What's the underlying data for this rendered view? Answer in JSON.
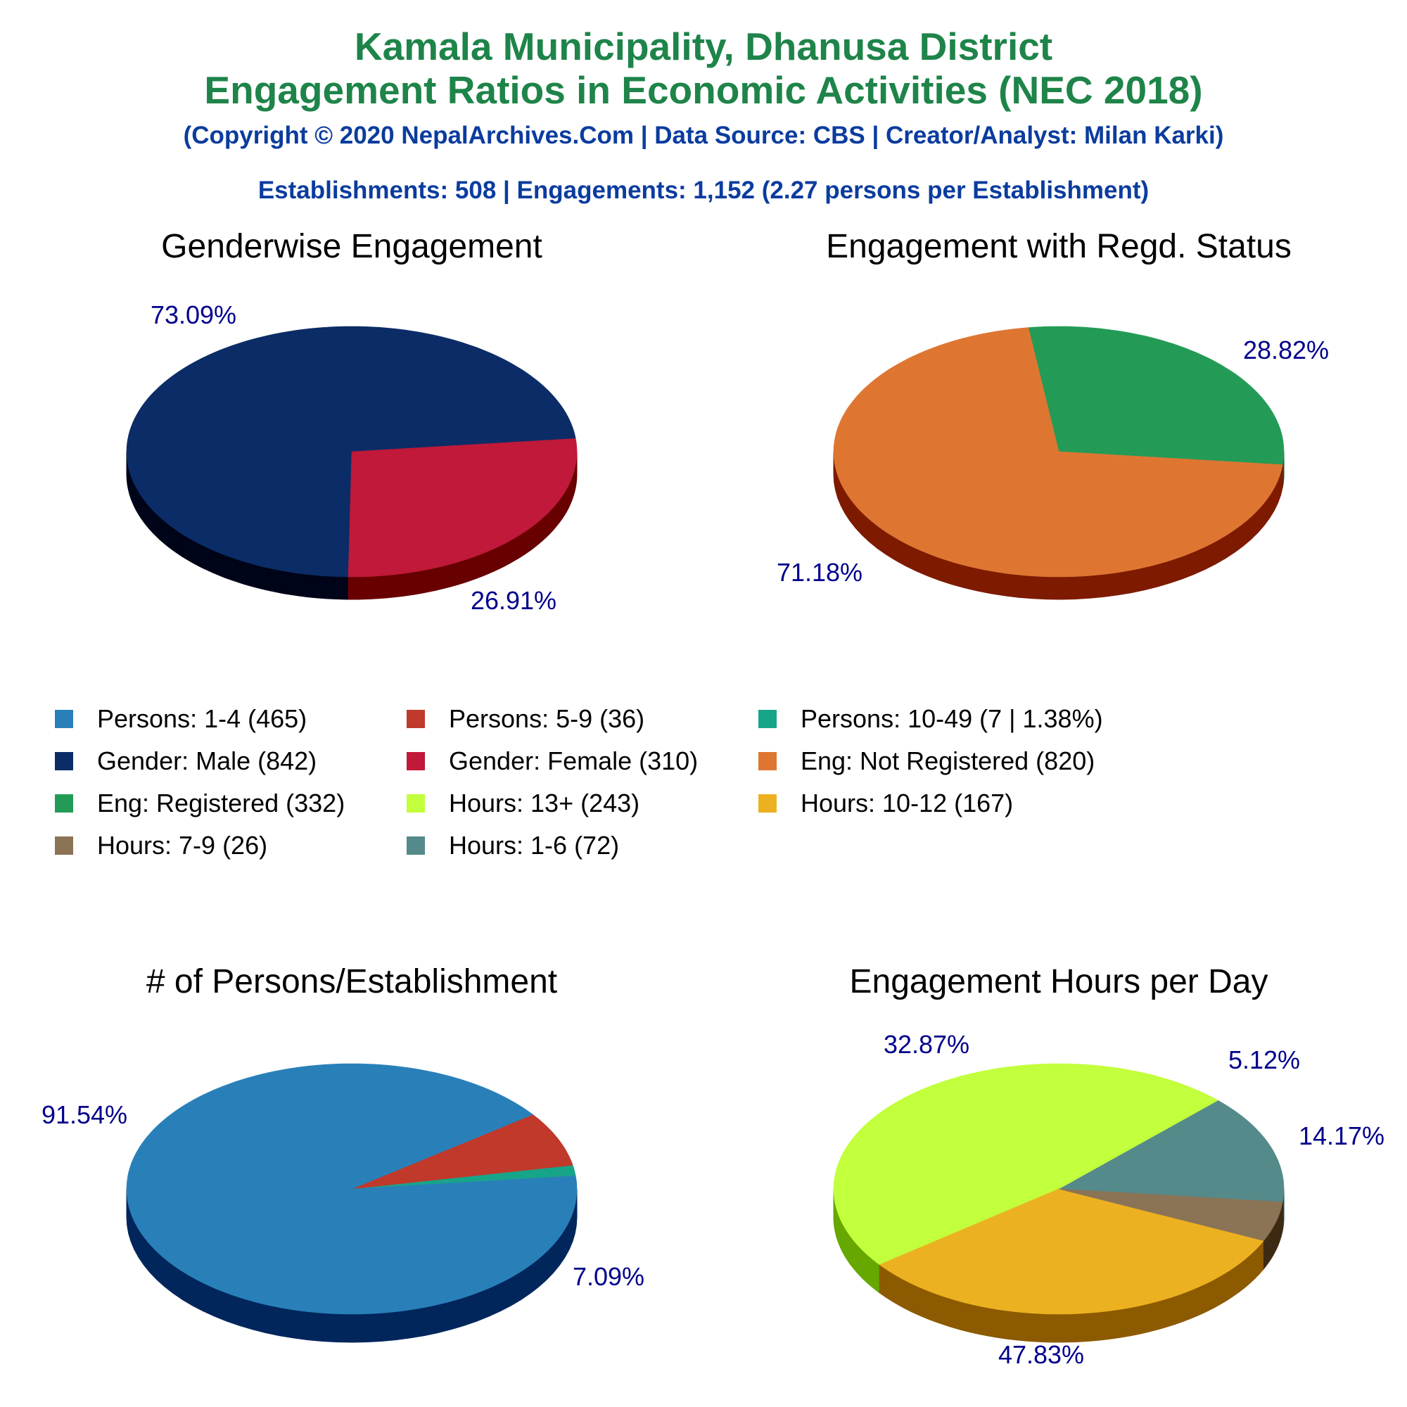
{
  "header": {
    "title_line1": "Kamala Municipality, Dhanusa District",
    "title_line2": "Engagement Ratios in Economic Activities (NEC 2018)",
    "subtitle": "(Copyright © 2020 NepalArchives.Com | Data Source: CBS | Creator/Analyst: Milan Karki)",
    "summary": "Establishments: 508 | Engagements: 1,152 (2.27 persons per Establishment)"
  },
  "legend": [
    {
      "label": "Persons: 1-4 (465)",
      "color": "#2980b9"
    },
    {
      "label": "Persons: 5-9 (36)",
      "color": "#c0392b"
    },
    {
      "label": "Persons: 10-49 (7 | 1.38%)",
      "color": "#17a589"
    },
    {
      "label": "Gender: Male (842)",
      "color": "#0b2c66"
    },
    {
      "label": "Gender: Female (310)",
      "color": "#c0193a"
    },
    {
      "label": "Eng: Not Registered (820)",
      "color": "#de7632"
    },
    {
      "label": "Eng: Registered (332)",
      "color": "#239b56"
    },
    {
      "label": "Hours: 13+ (243)",
      "color": "#c2ff3c"
    },
    {
      "label": "Hours: 10-12 (167)",
      "color": "#ecb121"
    },
    {
      "label": "Hours: 7-9 (26)",
      "color": "#8b7355"
    },
    {
      "label": "Hours: 1-6 (72)",
      "color": "#548a8a"
    }
  ],
  "chart_data": [
    {
      "type": "pie",
      "title": "Genderwise Engagement",
      "slices": [
        {
          "name": "Gender: Male",
          "value": 842,
          "label": "73.09%",
          "color": "#0b2c66",
          "side": "#000418"
        },
        {
          "name": "Gender: Female",
          "value": 310,
          "label": "26.91%",
          "color": "#c0193a",
          "side": "#680000"
        }
      ]
    },
    {
      "type": "pie",
      "title": "Engagement with Regd. Status",
      "slices": [
        {
          "name": "Eng: Registered",
          "value": 332,
          "label": "28.82%",
          "color": "#239b56",
          "side": "#0b5a24"
        },
        {
          "name": "Eng: Not Registered",
          "value": 820,
          "label": "71.18%",
          "color": "#de7632",
          "side": "#7d1a00"
        }
      ]
    },
    {
      "type": "pie",
      "title": "# of Persons/Establishment",
      "slices": [
        {
          "name": "Persons: 10-49",
          "value": 7,
          "label": "",
          "color": "#17a589",
          "side": "#00493a"
        },
        {
          "name": "Persons: 5-9",
          "value": 36,
          "label": "7.09%",
          "color": "#c0392b",
          "side": "#6a0000"
        },
        {
          "name": "Persons: 1-4",
          "value": 465,
          "label": "91.54%",
          "color": "#2980b9",
          "side": "#01265c"
        }
      ]
    },
    {
      "type": "pie",
      "title": "Engagement Hours per Day",
      "slices": [
        {
          "name": "Hours: 1-6",
          "value": 72,
          "label": "14.17%",
          "color": "#548a8a",
          "side": "#1a4444"
        },
        {
          "name": "Hours: 13+",
          "value": 243,
          "label": "47.83%",
          "color": "#c2ff3c",
          "side": "#66a700"
        },
        {
          "name": "Hours: 10-12",
          "value": 167,
          "label": "32.87%",
          "color": "#ecb121",
          "side": "#8c5a00"
        },
        {
          "name": "Hours: 7-9",
          "value": 26,
          "label": "5.12%",
          "color": "#8b7355",
          "side": "#3e2a12"
        }
      ]
    }
  ]
}
